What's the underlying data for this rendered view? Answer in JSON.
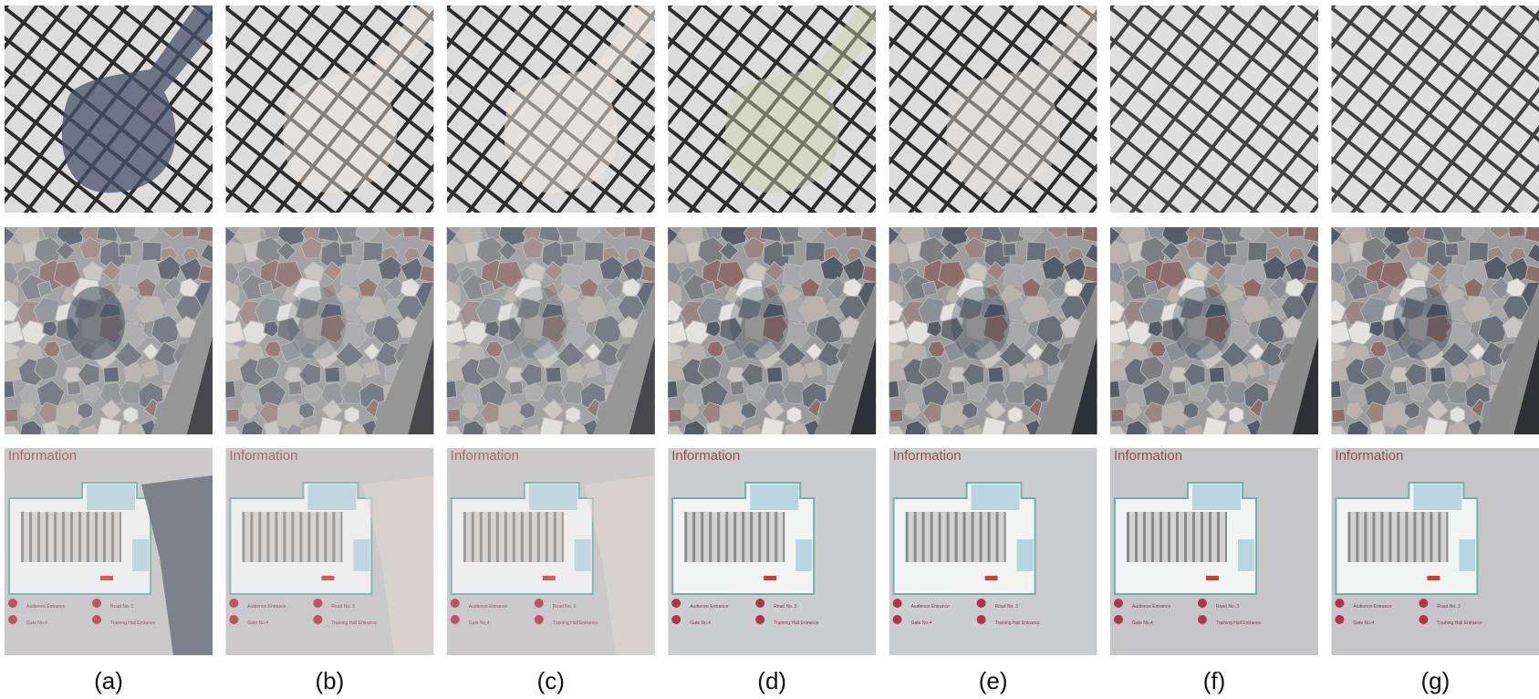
{
  "figure": {
    "captions": [
      "(a)",
      "(b)",
      "(c)",
      "(d)",
      "(e)",
      "(f)",
      "(g)"
    ],
    "sign": {
      "title": "Information",
      "legend": [
        "Audience Entrance",
        "Road No. 3",
        "Gate No.4",
        "Training Hall Entrance"
      ]
    }
  }
}
